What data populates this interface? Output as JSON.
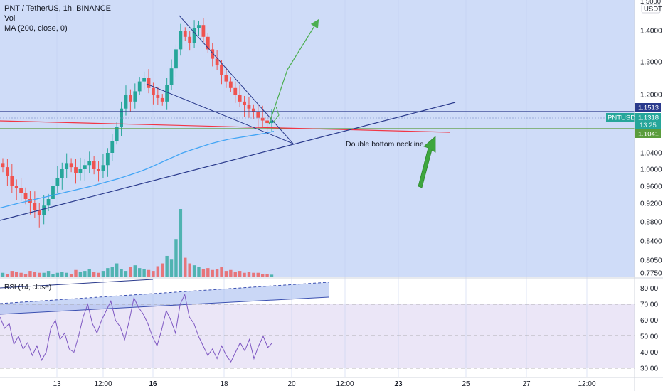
{
  "legend": {
    "symbol": "PNT / TetherUS, 1h, BINANCE",
    "vol": "Vol",
    "ma": "MA (200, close, 0)",
    "rsi": "RSI (14, close)"
  },
  "currency_tag": "USDT",
  "badges": {
    "top": "1.5000",
    "upper": "1.1513",
    "ticker": "PNTUSDT",
    "price": "1.1318",
    "countdown": "13:25",
    "lower": "1.1041"
  },
  "annotation": "Double bottom neckline",
  "colors": {
    "price_bg": "#cfdcf8",
    "rsi_band": "#ebe6f7",
    "up": "#26a69a",
    "down": "#ef5350",
    "ma": "#42a5f5",
    "trend": "#2a3a8c",
    "neckline": "#f23645",
    "support": "#4caf50",
    "rsi_line": "#7e57c2",
    "arrow": "#4caf50"
  },
  "chart_data": [
    {
      "type": "candlestick",
      "symbol": "PNT / TetherUS",
      "timeframe": "1h",
      "exchange": "BINANCE",
      "y_axis_ticks": [
        0.775,
        0.805,
        0.84,
        0.88,
        0.92,
        0.96,
        1.0,
        1.04,
        1.2,
        1.3,
        1.4
      ],
      "y_axis_ticks_display": [
        "0.7750",
        "0.8050",
        "0.8400",
        "0.8800",
        "0.9200",
        "0.9600",
        "1.0000",
        "1.0400",
        "1.2000",
        "1.3000",
        "1.4000"
      ],
      "x_axis_ticks": [
        "13",
        "12:00",
        "16",
        "18",
        "20",
        "12:00",
        "23",
        "25",
        "27",
        "12:00"
      ],
      "x_axis_ticks_bold": [
        "16",
        "23"
      ],
      "close_series": [
        1.005,
        0.985,
        0.96,
        0.955,
        0.945,
        0.93,
        0.92,
        0.905,
        0.895,
        0.915,
        0.93,
        0.96,
        0.98,
        1.0,
        1.015,
        1.005,
        0.99,
        1.0,
        1.01,
        1.02,
        1.0,
        0.995,
        1.01,
        1.04,
        1.08,
        1.12,
        1.16,
        1.2,
        1.18,
        1.21,
        1.24,
        1.25,
        1.22,
        1.2,
        1.19,
        1.18,
        1.23,
        1.28,
        1.34,
        1.4,
        1.38,
        1.36,
        1.41,
        1.42,
        1.38,
        1.34,
        1.31,
        1.29,
        1.26,
        1.24,
        1.22,
        1.2,
        1.18,
        1.17,
        1.16,
        1.15,
        1.14,
        1.135,
        1.13,
        1.135
      ],
      "volume": [
        4,
        3,
        6,
        5,
        4,
        3,
        6,
        5,
        4,
        4,
        6,
        3,
        4,
        5,
        4,
        3,
        7,
        5,
        6,
        8,
        5,
        4,
        6,
        9,
        10,
        14,
        8,
        6,
        10,
        12,
        9,
        8,
        7,
        6,
        11,
        14,
        22,
        18,
        40,
        72,
        20,
        14,
        12,
        10,
        8,
        9,
        7,
        8,
        10,
        6,
        7,
        5,
        6,
        4,
        5,
        4,
        4,
        3,
        3,
        2
      ],
      "ma200": [
        0.91,
        0.915,
        0.92,
        0.925,
        0.93,
        0.935,
        0.94,
        0.945,
        0.95,
        0.955,
        0.96,
        0.966,
        0.972,
        0.978,
        0.985,
        0.992,
        1.0,
        1.01,
        1.02,
        1.03,
        1.04,
        1.05,
        1.06,
        1.07,
        1.078,
        1.085,
        1.09,
        1.095,
        1.1,
        1.105,
        1.11
      ],
      "horizontal_levels": [
        1.1513,
        1.1318,
        1.1041
      ],
      "last_price": 1.1318,
      "annotations": [
        "Double bottom neckline"
      ]
    },
    {
      "type": "line",
      "name": "RSI (14, close)",
      "y_axis_ticks": [
        30.0,
        40.0,
        50.0,
        60.0,
        70.0,
        80.0
      ],
      "y_axis_ticks_display": [
        "30.00",
        "40.00",
        "50.00",
        "60.00",
        "70.00",
        "80.00"
      ],
      "band": [
        30,
        70
      ],
      "values": [
        62,
        55,
        58,
        45,
        50,
        42,
        46,
        38,
        44,
        35,
        40,
        55,
        60,
        48,
        52,
        42,
        40,
        50,
        62,
        70,
        58,
        52,
        60,
        66,
        72,
        60,
        56,
        48,
        60,
        74,
        68,
        64,
        58,
        50,
        44,
        54,
        66,
        60,
        52,
        70,
        76,
        62,
        58,
        50,
        44,
        38,
        42,
        36,
        44,
        38,
        34,
        40,
        46,
        41,
        48,
        36,
        44,
        50,
        43,
        46
      ]
    }
  ]
}
